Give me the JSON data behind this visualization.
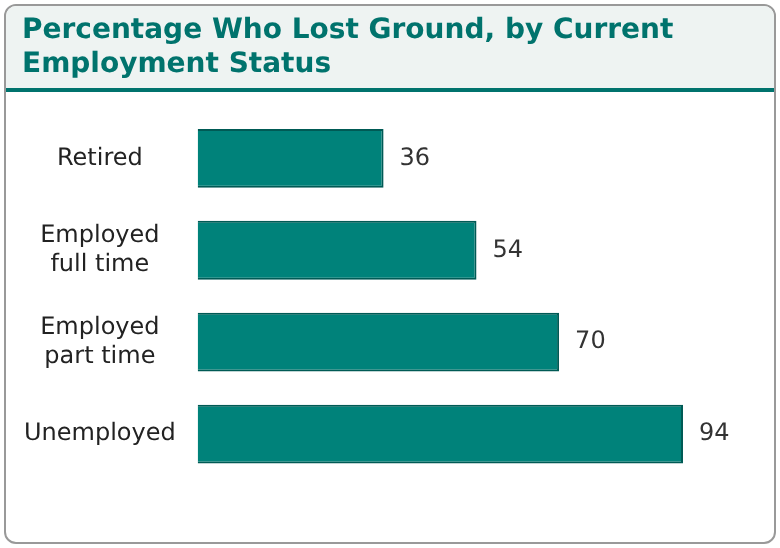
{
  "chart_data": {
    "type": "bar",
    "orientation": "horizontal",
    "title": "Percentage Who Lost Ground, by Current Employment Status",
    "categories": [
      "Retired",
      "Employed full time",
      "Employed part time",
      "Unemployed"
    ],
    "values": [
      36,
      54,
      70,
      94
    ],
    "color": "#00827a",
    "data_labels": true
  }
}
